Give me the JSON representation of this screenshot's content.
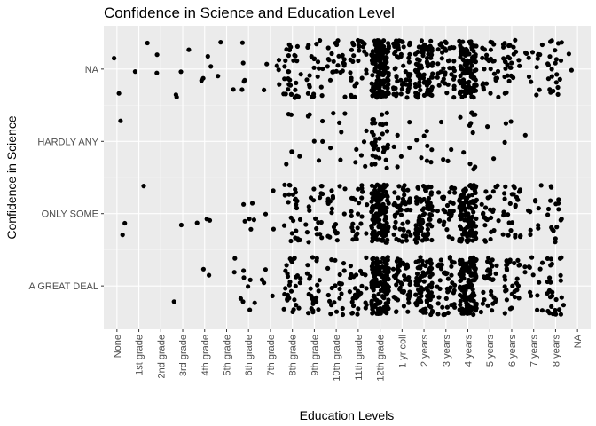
{
  "chart_data": {
    "type": "scatter",
    "jitter": true,
    "title": "Confidence in Science and Education Level",
    "xlabel": "Education Levels",
    "ylabel": "Confidence in Science",
    "x_categories": [
      "None",
      "1st grade",
      "2nd grade",
      "3rd grade",
      "4th grade",
      "5th grade",
      "6th grade",
      "7th grade",
      "8th grade",
      "9th grade",
      "10th grade",
      "11th grade",
      "12th grade",
      "1 yr coll",
      "2 years",
      "3 years",
      "4 years",
      "5 years",
      "6 years",
      "7 years",
      "8 years",
      "NA"
    ],
    "y_categories": [
      "A GREAT DEAL",
      "ONLY SOME",
      "HARDLY ANY",
      "NA"
    ],
    "approx_point_counts": {
      "NA": [
        2,
        2,
        2,
        4,
        4,
        3,
        5,
        6,
        30,
        22,
        25,
        30,
        160,
        60,
        80,
        40,
        110,
        28,
        28,
        14,
        22,
        2
      ],
      "HARDLY ANY": [
        1,
        0,
        0,
        0,
        0,
        0,
        0,
        0,
        6,
        6,
        6,
        6,
        35,
        6,
        8,
        4,
        12,
        2,
        3,
        1,
        0,
        0
      ],
      "ONLY SOME": [
        2,
        1,
        0,
        1,
        3,
        0,
        6,
        3,
        25,
        20,
        20,
        25,
        130,
        50,
        75,
        30,
        110,
        25,
        26,
        10,
        17,
        0
      ],
      "A GREAT DEAL": [
        0,
        0,
        0,
        1,
        2,
        2,
        8,
        4,
        30,
        25,
        22,
        30,
        140,
        50,
        80,
        40,
        130,
        30,
        30,
        14,
        28,
        0
      ]
    },
    "colors": {
      "panel": "#ebebeb",
      "grid_major": "#ffffff",
      "grid_minor": "#f5f5f5",
      "point": "#000000"
    },
    "grid": true,
    "legend": "none"
  }
}
